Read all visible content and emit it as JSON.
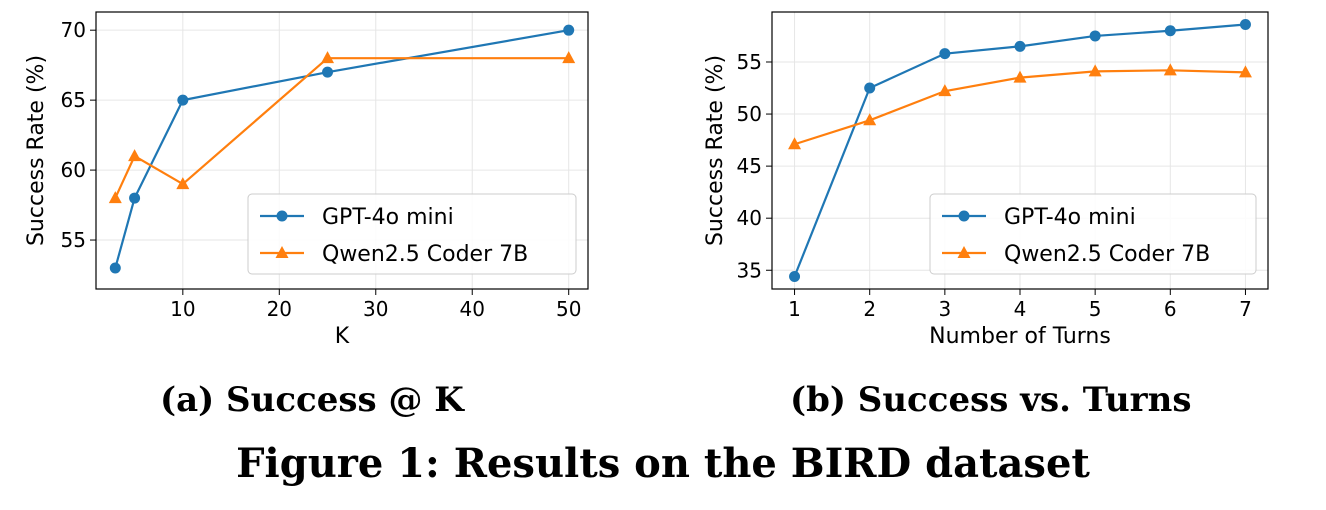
{
  "figure_caption": "Figure 1: Results on the BIRD dataset",
  "colors": {
    "series_1": "#1f77b4",
    "series_2": "#ff7f0e",
    "grid": "#e6e6e6"
  },
  "chart_data": [
    {
      "type": "line",
      "subcaption": "(a) Success @ K",
      "xlabel": "K",
      "ylabel": "Success Rate (%)",
      "xlim": [
        1,
        52
      ],
      "ylim": [
        51.5,
        71.3
      ],
      "xticks": [
        10,
        20,
        30,
        40,
        50
      ],
      "yticks": [
        55,
        60,
        65,
        70
      ],
      "grid": true,
      "legend_position": "lower-right",
      "series": [
        {
          "name": "GPT-4o mini",
          "marker": "circle",
          "x": [
            3,
            5,
            10,
            25,
            50
          ],
          "y": [
            53,
            58,
            65,
            67,
            70
          ]
        },
        {
          "name": "Qwen2.5 Coder 7B",
          "marker": "triangle",
          "x": [
            3,
            5,
            10,
            25,
            50
          ],
          "y": [
            58,
            61,
            59,
            68,
            68
          ]
        }
      ]
    },
    {
      "type": "line",
      "subcaption": "(b) Success vs. Turns",
      "xlabel": "Number of Turns",
      "ylabel": "Success Rate (%)",
      "xlim": [
        0.7,
        7.3
      ],
      "ylim": [
        33.2,
        59.8
      ],
      "xticks": [
        1,
        2,
        3,
        4,
        5,
        6,
        7
      ],
      "yticks": [
        35,
        40,
        45,
        50,
        55
      ],
      "grid": true,
      "legend_position": "lower-right",
      "series": [
        {
          "name": "GPT-4o mini",
          "marker": "circle",
          "x": [
            1,
            2,
            3,
            4,
            5,
            6,
            7
          ],
          "y": [
            34.4,
            52.5,
            55.8,
            56.5,
            57.5,
            58.0,
            58.6
          ]
        },
        {
          "name": "Qwen2.5 Coder 7B",
          "marker": "triangle",
          "x": [
            1,
            2,
            3,
            4,
            5,
            6,
            7
          ],
          "y": [
            47.1,
            49.4,
            52.2,
            53.5,
            54.1,
            54.2,
            54.0
          ]
        }
      ]
    }
  ]
}
